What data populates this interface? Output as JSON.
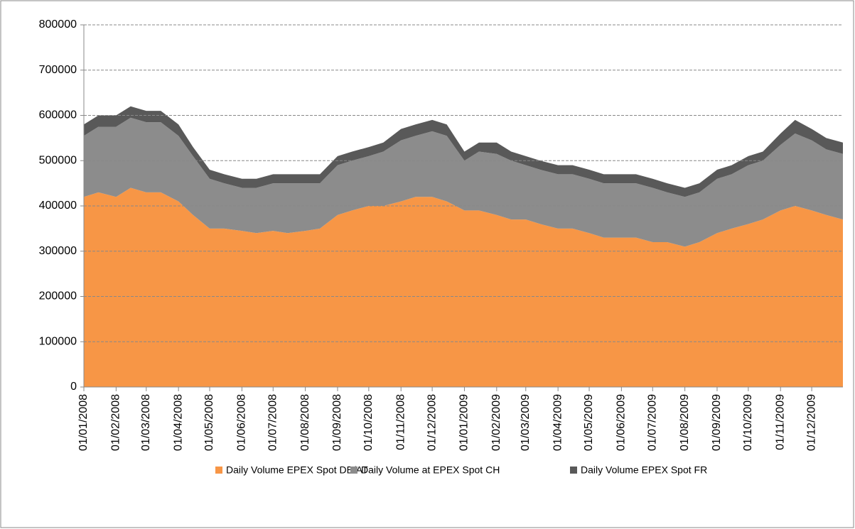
{
  "chart_data": {
    "type": "stacked-area",
    "x": [
      "01/01/2008",
      "15/01/2008",
      "01/02/2008",
      "15/02/2008",
      "01/03/2008",
      "15/03/2008",
      "01/04/2008",
      "15/04/2008",
      "01/05/2008",
      "15/05/2008",
      "01/06/2008",
      "15/06/2008",
      "01/07/2008",
      "15/07/2008",
      "01/08/2008",
      "15/08/2008",
      "01/09/2008",
      "15/09/2008",
      "01/10/2008",
      "15/10/2008",
      "01/11/2008",
      "15/11/2008",
      "01/12/2008",
      "15/12/2008",
      "01/01/2009",
      "15/01/2009",
      "01/02/2009",
      "15/02/2009",
      "01/03/2009",
      "15/03/2009",
      "01/04/2009",
      "15/04/2009",
      "01/05/2009",
      "15/05/2009",
      "01/06/2009",
      "15/06/2009",
      "01/07/2009",
      "15/07/2009",
      "01/08/2009",
      "15/08/2009",
      "01/09/2009",
      "15/09/2009",
      "01/10/2009",
      "15/10/2009",
      "01/11/2009",
      "15/11/2009",
      "01/12/2009",
      "15/12/2009",
      "31/12/2009"
    ],
    "series": [
      {
        "name": "Daily Volume EPEX Spot DE/AT",
        "color": "#f79646",
        "values": [
          420000,
          430000,
          420000,
          440000,
          430000,
          430000,
          410000,
          380000,
          350000,
          350000,
          345000,
          340000,
          345000,
          340000,
          345000,
          350000,
          380000,
          390000,
          400000,
          400000,
          410000,
          420000,
          420000,
          410000,
          390000,
          390000,
          380000,
          370000,
          370000,
          360000,
          350000,
          350000,
          340000,
          330000,
          330000,
          330000,
          320000,
          320000,
          310000,
          320000,
          340000,
          350000,
          360000,
          370000,
          390000,
          400000,
          390000,
          380000,
          370000
        ]
      },
      {
        "name": "Daily Volume at EPEX Spot CH",
        "color": "#8c8c8c",
        "values": [
          135000,
          145000,
          155000,
          155000,
          155000,
          155000,
          145000,
          130000,
          110000,
          100000,
          95000,
          100000,
          105000,
          110000,
          105000,
          100000,
          110000,
          110000,
          110000,
          120000,
          135000,
          135000,
          145000,
          145000,
          110000,
          130000,
          135000,
          130000,
          120000,
          120000,
          120000,
          120000,
          120000,
          120000,
          120000,
          120000,
          120000,
          110000,
          110000,
          110000,
          120000,
          120000,
          130000,
          130000,
          145000,
          160000,
          155000,
          145000,
          145000
        ]
      },
      {
        "name": "Daily Volume EPEX Spot FR",
        "color": "#595959",
        "values": [
          25000,
          25000,
          25000,
          25000,
          25000,
          25000,
          25000,
          20000,
          20000,
          20000,
          20000,
          20000,
          20000,
          20000,
          20000,
          20000,
          20000,
          20000,
          20000,
          20000,
          25000,
          25000,
          25000,
          25000,
          20000,
          20000,
          25000,
          20000,
          20000,
          20000,
          20000,
          20000,
          20000,
          20000,
          20000,
          20000,
          20000,
          20000,
          20000,
          20000,
          20000,
          20000,
          20000,
          20000,
          25000,
          30000,
          25000,
          25000,
          25000
        ]
      }
    ],
    "xlim": [
      "01/01/2008",
      "31/12/2009"
    ],
    "xticks": [
      "01/01/2008",
      "01/02/2008",
      "01/03/2008",
      "01/04/2008",
      "01/05/2008",
      "01/06/2008",
      "01/07/2008",
      "01/08/2008",
      "01/09/2008",
      "01/10/2008",
      "01/11/2008",
      "01/12/2008",
      "01/01/2009",
      "01/02/2009",
      "01/03/2009",
      "01/04/2009",
      "01/05/2009",
      "01/06/2009",
      "01/07/2009",
      "01/08/2009",
      "01/09/2009",
      "01/10/2009",
      "01/11/2009",
      "01/12/2009"
    ],
    "ylim": [
      0,
      800000
    ],
    "yticks": [
      0,
      100000,
      200000,
      300000,
      400000,
      500000,
      600000,
      700000,
      800000
    ],
    "grid": true,
    "legend": "bottom"
  }
}
